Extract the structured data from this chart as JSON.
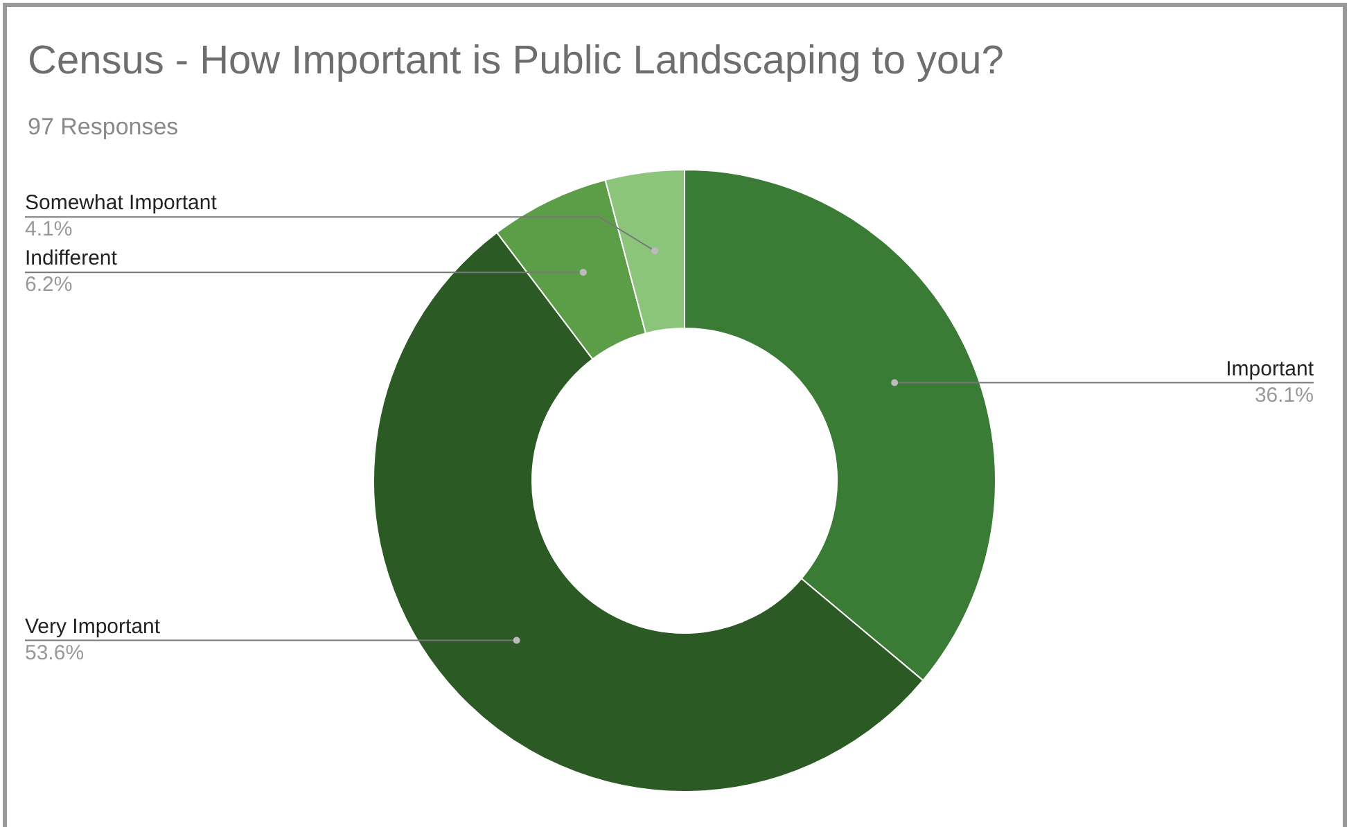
{
  "chart_data": {
    "type": "donut",
    "title": "Census - How Important is Public Landscaping to you?",
    "subtitle": "97 Responses",
    "categories": [
      "Important",
      "Very Important",
      "Indifferent",
      "Somewhat Important"
    ],
    "values": [
      36.1,
      53.6,
      6.2,
      4.1
    ],
    "value_labels": [
      "36.1%",
      "53.6%",
      "6.2%",
      "4.1%"
    ],
    "colors": [
      "#3a7b35",
      "#2b5a24",
      "#5c9e48",
      "#8cc47c"
    ],
    "legend": false
  }
}
